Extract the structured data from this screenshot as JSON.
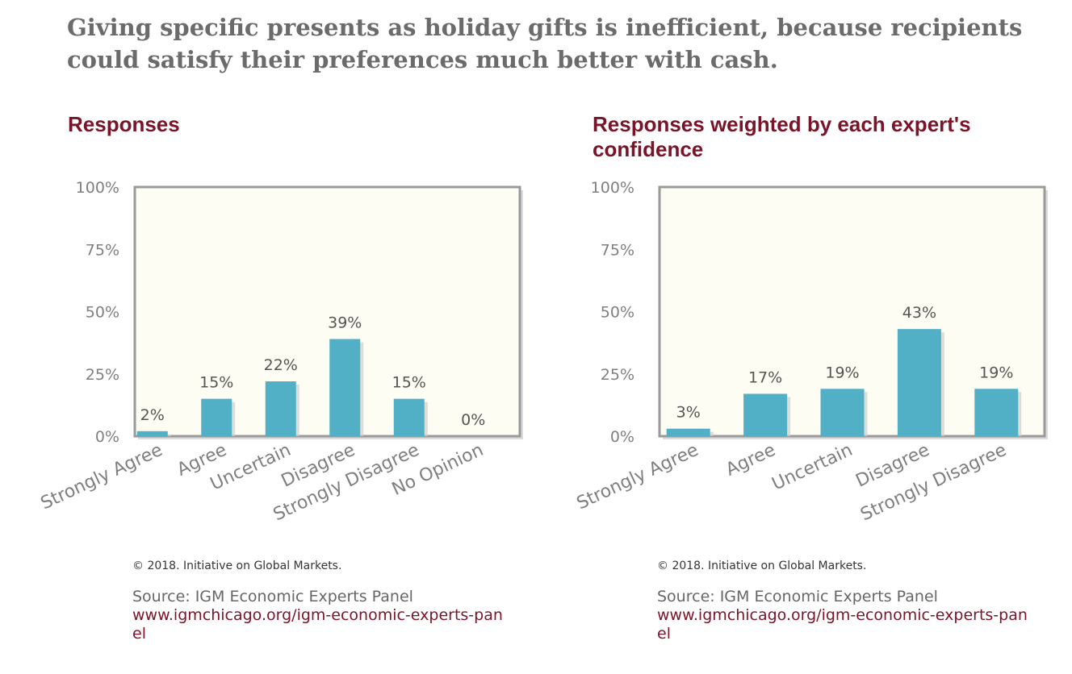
{
  "headline": "Giving specific presents as holiday gifts is inefficient, because recipients could satisfy their preferences much better with cash.",
  "colors": {
    "bar": "#52b0c6",
    "plot_bg": "#fdfdf3",
    "plot_border": "#9a9a9a",
    "title": "#7a1428",
    "axis_text": "#7f7f7f"
  },
  "chart_data": [
    {
      "type": "bar",
      "title": "Responses",
      "categories": [
        "Strongly Agree",
        "Agree",
        "Uncertain",
        "Disagree",
        "Strongly Disagree",
        "No Opinion"
      ],
      "values": [
        2,
        15,
        22,
        39,
        15,
        0
      ],
      "data_labels": [
        "2%",
        "15%",
        "22%",
        "39%",
        "15%",
        "0%"
      ],
      "yticks": [
        "0%",
        "25%",
        "50%",
        "75%",
        "100%"
      ],
      "ylim": [
        0,
        100
      ],
      "xlabel": "",
      "ylabel": "",
      "grid": false
    },
    {
      "type": "bar",
      "title": "Responses weighted by each expert's confidence",
      "categories": [
        "Strongly Agree",
        "Agree",
        "Uncertain",
        "Disagree",
        "Strongly Disagree"
      ],
      "values": [
        3,
        17,
        19,
        43,
        19
      ],
      "data_labels": [
        "3%",
        "17%",
        "19%",
        "43%",
        "19%"
      ],
      "yticks": [
        "0%",
        "25%",
        "50%",
        "75%",
        "100%"
      ],
      "ylim": [
        0,
        100
      ],
      "xlabel": "",
      "ylabel": "",
      "grid": false
    }
  ],
  "footer": {
    "copyright": "© 2018. Initiative on Global Markets.",
    "source": "Source: IGM Economic Experts Panel",
    "url": "www.igmchicago.org/igm-economic-experts-panel"
  }
}
